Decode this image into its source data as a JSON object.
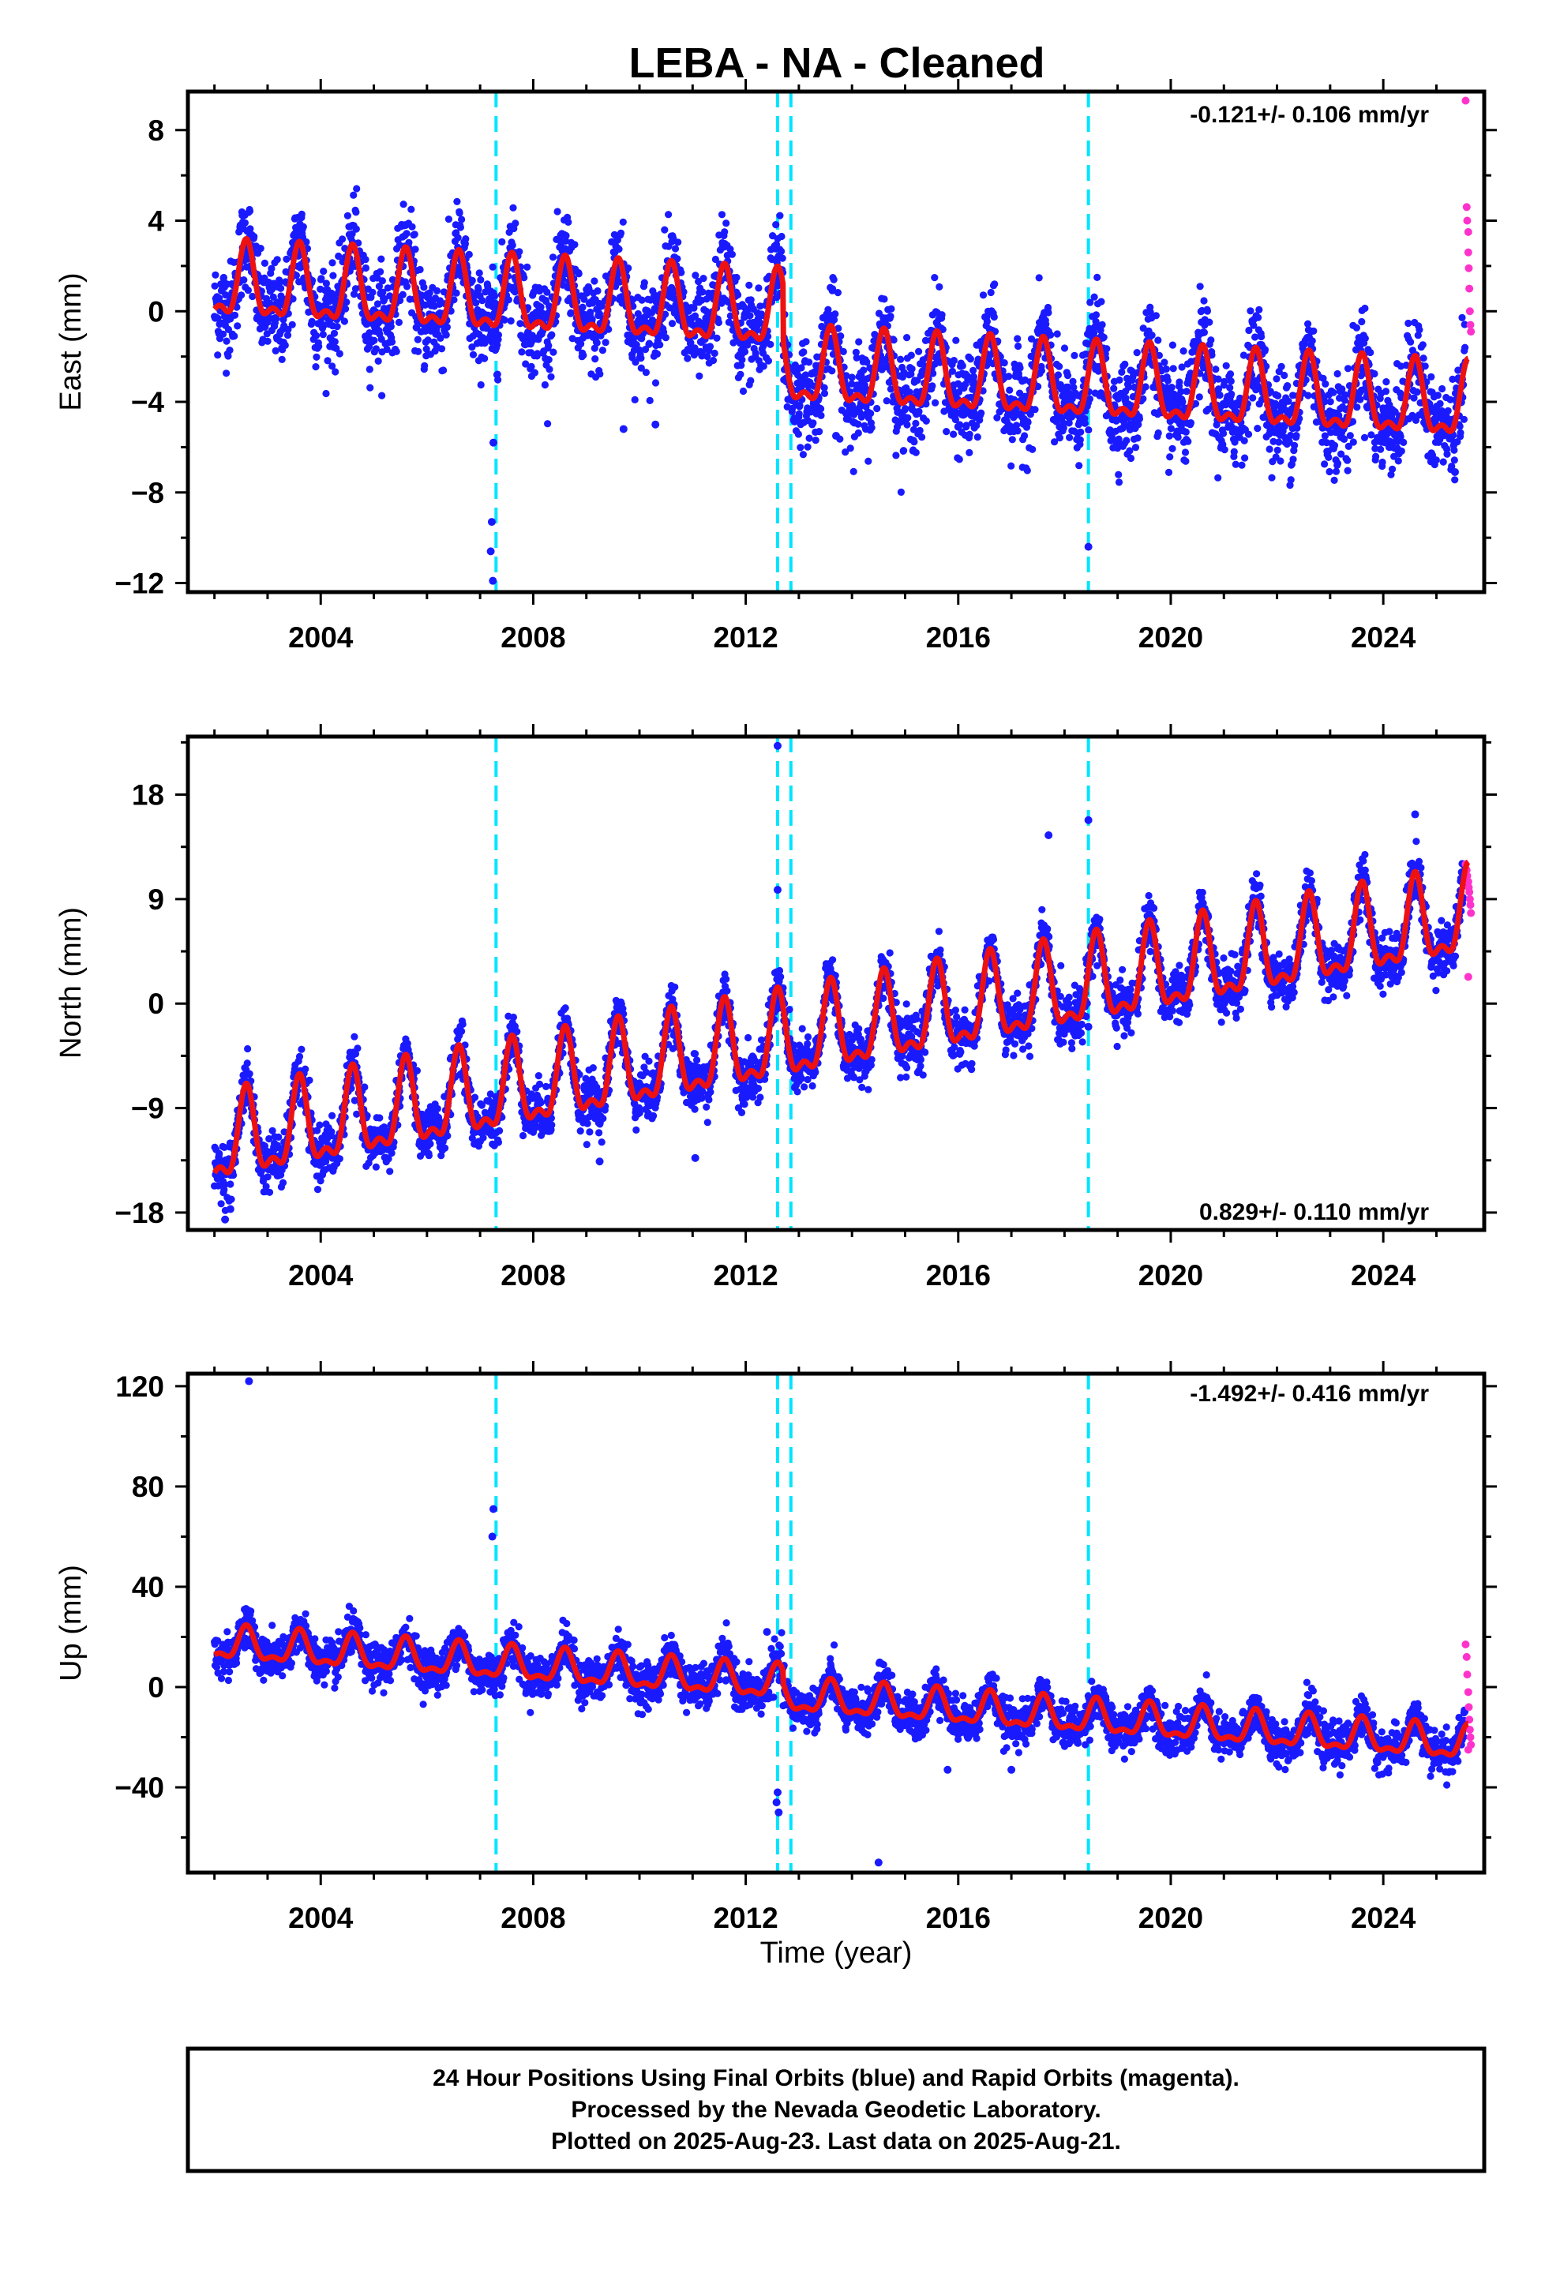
{
  "title": "LEBA  - NA - Cleaned",
  "footer": {
    "line1": "24 Hour Positions Using Final Orbits (blue) and Rapid Orbits (magenta).",
    "line2": "Processed by the Nevada Geodetic Laboratory.",
    "line3": "Plotted on 2025-Aug-23. Last data on 2025-Aug-21."
  },
  "colors": {
    "final_orbits": "#1a1aff",
    "rapid_orbits": "#ff33cc",
    "model": "#ee1111",
    "steps": "#00e5ff",
    "frame": "#000000"
  },
  "chart_data": [
    {
      "type": "scatter",
      "component": "East",
      "ylabel": "East (mm)",
      "xlabel": "",
      "rate_text": "-0.121+/- 0.106 mm/yr",
      "xlim": [
        2001.5,
        2025.9
      ],
      "ylim": [
        -12.4,
        9.7
      ],
      "xticks": [
        2004,
        2008,
        2012,
        2016,
        2020,
        2024
      ],
      "yticks": [
        -12,
        -8,
        -4,
        0,
        4,
        8
      ],
      "ytick_labels": [
        "−12",
        "−8",
        "−4",
        "0",
        "4",
        "8"
      ],
      "start_year": 2002.0,
      "trend_mm_per_yr": -0.121,
      "offset_mm": 1.1,
      "annual_amplitude_mm": 1.5,
      "scatter_spread_mm": 1.4,
      "steps": [
        {
          "year": 2012.7,
          "offset_mm": -2.5
        }
      ],
      "step_lines": [
        2007.3,
        2012.6,
        2012.85,
        2018.45
      ],
      "outliers": [
        [
          2007.25,
          -5.8
        ],
        [
          2007.22,
          -9.3
        ],
        [
          2007.2,
          -10.6
        ],
        [
          2007.24,
          -11.9
        ],
        [
          2018.45,
          -10.4
        ],
        [
          2009.7,
          -5.2
        ],
        [
          2010.3,
          -5.0
        ],
        [
          2013.7,
          -5.5
        ],
        [
          2016.0,
          -5.1
        ],
        [
          2025.35,
          -7.1
        ]
      ],
      "rapid_points": [
        [
          2025.55,
          9.3
        ],
        [
          2025.57,
          4.6
        ],
        [
          2025.58,
          4.0
        ],
        [
          2025.6,
          3.5
        ],
        [
          2025.6,
          2.6
        ],
        [
          2025.61,
          1.9
        ],
        [
          2025.62,
          1.0
        ],
        [
          2025.63,
          0.0
        ],
        [
          2025.64,
          -0.6
        ],
        [
          2025.65,
          -0.9
        ]
      ]
    },
    {
      "type": "scatter",
      "component": "North",
      "ylabel": "North (mm)",
      "xlabel": "",
      "rate_text": "0.829+/- 0.110 mm/yr",
      "xlim": [
        2001.5,
        2025.9
      ],
      "ylim": [
        -19.5,
        23.0
      ],
      "xticks": [
        2004,
        2008,
        2012,
        2016,
        2020,
        2024
      ],
      "yticks": [
        -18,
        -9,
        0,
        9,
        18
      ],
      "ytick_labels": [
        "−18",
        "−9",
        "0",
        "9",
        "18"
      ],
      "start_year": 2002.0,
      "trend_mm_per_yr": 0.829,
      "offset_mm": -12.3,
      "annual_amplitude_mm": 3.4,
      "scatter_spread_mm": 1.5,
      "steps": [
        {
          "year": 2012.7,
          "offset_mm": 0.0
        }
      ],
      "step_lines": [
        2007.3,
        2012.6,
        2012.85,
        2018.45
      ],
      "outliers": [
        [
          2012.6,
          22.2
        ],
        [
          2018.45,
          15.8
        ],
        [
          2012.6,
          9.8
        ],
        [
          2017.7,
          14.5
        ],
        [
          2024.6,
          16.3
        ],
        [
          2011.05,
          -13.3
        ],
        [
          2009.25,
          -13.6
        ],
        [
          2002.2,
          -18.6
        ],
        [
          2002.3,
          -17.7
        ],
        [
          2018.45,
          -2.0
        ]
      ],
      "rapid_points": [
        [
          2025.55,
          12.0
        ],
        [
          2025.57,
          11.5
        ],
        [
          2025.58,
          11.0
        ],
        [
          2025.6,
          10.5
        ],
        [
          2025.61,
          10.0
        ],
        [
          2025.62,
          9.6
        ],
        [
          2025.63,
          9.0
        ],
        [
          2025.64,
          8.5
        ],
        [
          2025.65,
          7.8
        ],
        [
          2025.6,
          2.3
        ]
      ]
    },
    {
      "type": "scatter",
      "component": "Up",
      "ylabel": "Up (mm)",
      "xlabel": "Time (year)",
      "rate_text": "-1.492+/- 0.416 mm/yr",
      "xlim": [
        2001.5,
        2025.9
      ],
      "ylim": [
        -74,
        125
      ],
      "xticks": [
        2004,
        2008,
        2012,
        2016,
        2020,
        2024
      ],
      "yticks": [
        -40,
        0,
        40,
        80,
        120
      ],
      "ytick_labels": [
        "−40",
        "0",
        "40",
        "80",
        "120"
      ],
      "start_year": 2002.0,
      "trend_mm_per_yr": -1.492,
      "offset_mm": 17.0,
      "annual_amplitude_mm": 6.0,
      "scatter_spread_mm": 5.5,
      "steps": [
        {
          "year": 2012.7,
          "offset_mm": -5.0
        }
      ],
      "step_lines": [
        2007.3,
        2012.6,
        2012.85,
        2018.45
      ],
      "outliers": [
        [
          2002.65,
          122
        ],
        [
          2007.25,
          71
        ],
        [
          2007.23,
          60
        ],
        [
          2012.6,
          -42
        ],
        [
          2012.58,
          -46
        ],
        [
          2012.62,
          -50
        ],
        [
          2014.5,
          -70
        ],
        [
          2015.8,
          -33
        ],
        [
          2017.0,
          -33
        ],
        [
          2012.4,
          22
        ]
      ],
      "rapid_points": [
        [
          2025.55,
          17
        ],
        [
          2025.57,
          12
        ],
        [
          2025.58,
          5
        ],
        [
          2025.6,
          -2
        ],
        [
          2025.61,
          -8
        ],
        [
          2025.62,
          -13
        ],
        [
          2025.63,
          -17
        ],
        [
          2025.64,
          -20
        ],
        [
          2025.65,
          -23
        ],
        [
          2025.6,
          -25
        ]
      ]
    }
  ]
}
